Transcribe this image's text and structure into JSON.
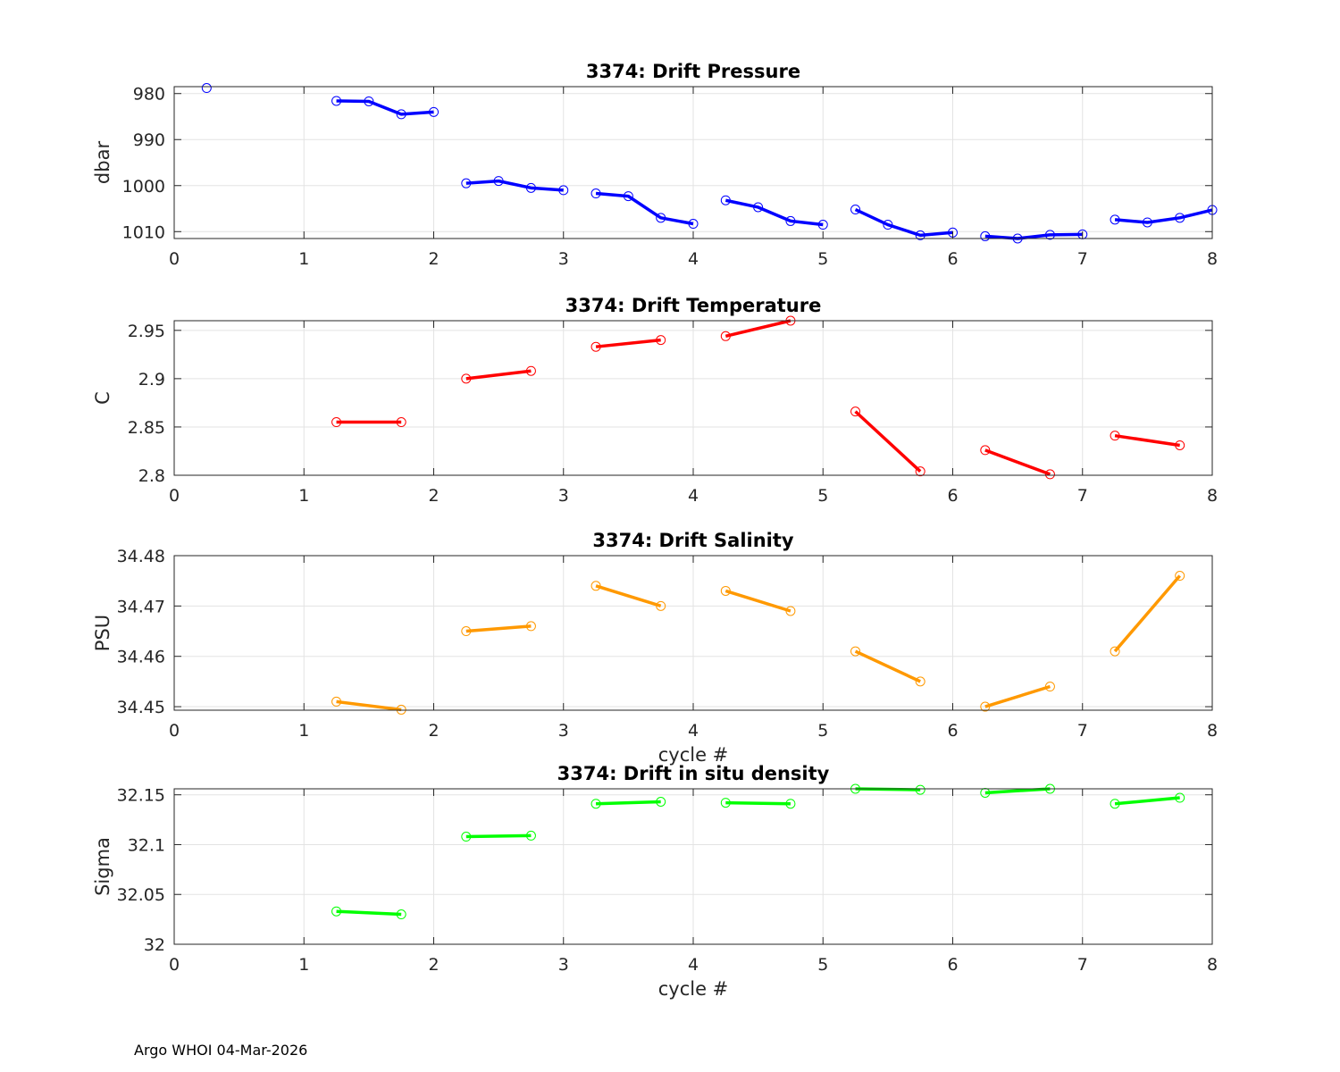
{
  "footer": "Argo WHOI 04-Mar-2026",
  "chart_data": [
    {
      "type": "line",
      "title": "3374: Drift Pressure",
      "ylabel": "dbar",
      "xlabel": "",
      "xlim": [
        0,
        8
      ],
      "ylim": [
        1011.5,
        978.5
      ],
      "y_reversed": true,
      "xticks": [
        0,
        1,
        2,
        3,
        4,
        5,
        6,
        7,
        8
      ],
      "yticks": [
        980,
        990,
        1000,
        1010
      ],
      "ytick_labels": [
        "980",
        "990",
        "1000",
        "1010"
      ],
      "color": "#0000ff",
      "grid": true,
      "segments": [
        {
          "x": [
            0.25
          ],
          "y": [
            978.8
          ]
        },
        {
          "x": [
            1.25,
            1.5,
            1.75,
            2.0
          ],
          "y": [
            981.6,
            981.7,
            984.5,
            984.0
          ]
        },
        {
          "x": [
            2.25,
            2.5,
            2.75,
            3.0
          ],
          "y": [
            999.5,
            999.0,
            1000.5,
            1001.0
          ]
        },
        {
          "x": [
            3.25,
            3.5,
            3.75,
            4.0
          ],
          "y": [
            1001.7,
            1002.3,
            1007.0,
            1008.3
          ]
        },
        {
          "x": [
            4.25,
            4.5,
            4.75,
            5.0
          ],
          "y": [
            1003.2,
            1004.7,
            1007.7,
            1008.5
          ]
        },
        {
          "x": [
            5.25,
            5.5,
            5.75,
            6.0
          ],
          "y": [
            1005.2,
            1008.5,
            1010.8,
            1010.2
          ]
        },
        {
          "x": [
            6.25,
            6.5,
            6.75,
            7.0
          ],
          "y": [
            1011.0,
            1011.5,
            1010.7,
            1010.6
          ]
        },
        {
          "x": [
            7.25,
            7.5,
            7.75,
            8.0
          ],
          "y": [
            1007.4,
            1008.0,
            1007.0,
            1005.3
          ]
        }
      ]
    },
    {
      "type": "line",
      "title": "3374: Drift Temperature",
      "ylabel": "C",
      "xlabel": "",
      "xlim": [
        0,
        8
      ],
      "ylim": [
        2.8,
        2.96
      ],
      "y_reversed": false,
      "xticks": [
        0,
        1,
        2,
        3,
        4,
        5,
        6,
        7,
        8
      ],
      "yticks": [
        2.8,
        2.85,
        2.9,
        2.95
      ],
      "ytick_labels": [
        "2.8",
        "2.85",
        "2.9",
        "2.95"
      ],
      "color": "#ff0000",
      "grid": true,
      "segments": [
        {
          "x": [
            1.25,
            1.75
          ],
          "y": [
            2.855,
            2.855
          ]
        },
        {
          "x": [
            2.25,
            2.75
          ],
          "y": [
            2.9,
            2.908
          ]
        },
        {
          "x": [
            3.25,
            3.75
          ],
          "y": [
            2.933,
            2.94
          ]
        },
        {
          "x": [
            4.25,
            4.75
          ],
          "y": [
            2.944,
            2.96
          ]
        },
        {
          "x": [
            5.25,
            5.75
          ],
          "y": [
            2.866,
            2.804
          ]
        },
        {
          "x": [
            6.25,
            6.75
          ],
          "y": [
            2.826,
            2.801
          ]
        },
        {
          "x": [
            7.25,
            7.75
          ],
          "y": [
            2.841,
            2.831
          ]
        }
      ]
    },
    {
      "type": "line",
      "title": "3374: Drift Salinity",
      "ylabel": "PSU",
      "xlabel": "cycle #",
      "xlim": [
        0,
        8
      ],
      "ylim": [
        34.4493,
        34.48
      ],
      "y_reversed": false,
      "xticks": [
        0,
        1,
        2,
        3,
        4,
        5,
        6,
        7,
        8
      ],
      "yticks": [
        34.45,
        34.46,
        34.47,
        34.48
      ],
      "ytick_labels": [
        "34.45",
        "34.46",
        "34.47",
        "34.48"
      ],
      "color": "#ff9900",
      "grid": true,
      "segments": [
        {
          "x": [
            1.25,
            1.75
          ],
          "y": [
            34.451,
            34.4494
          ]
        },
        {
          "x": [
            2.25,
            2.75
          ],
          "y": [
            34.465,
            34.466
          ]
        },
        {
          "x": [
            3.25,
            3.75
          ],
          "y": [
            34.474,
            34.47
          ]
        },
        {
          "x": [
            4.25,
            4.75
          ],
          "y": [
            34.473,
            34.469
          ]
        },
        {
          "x": [
            5.25,
            5.75
          ],
          "y": [
            34.461,
            34.455
          ]
        },
        {
          "x": [
            6.25,
            6.75
          ],
          "y": [
            34.45,
            34.454
          ]
        },
        {
          "x": [
            7.25,
            7.75
          ],
          "y": [
            34.461,
            34.476
          ]
        }
      ]
    },
    {
      "type": "line",
      "title": "3374: Drift in situ density",
      "ylabel": "Sigma",
      "xlabel": "cycle #",
      "xlim": [
        0,
        8
      ],
      "ylim": [
        32,
        32.156
      ],
      "y_reversed": false,
      "xticks": [
        0,
        1,
        2,
        3,
        4,
        5,
        6,
        7,
        8
      ],
      "yticks": [
        32,
        32.05,
        32.1,
        32.15
      ],
      "ytick_labels": [
        "32",
        "32.05",
        "32.1",
        "32.15"
      ],
      "color": "#00ff00",
      "grid": true,
      "segments": [
        {
          "x": [
            1.25,
            1.75
          ],
          "y": [
            32.033,
            32.03
          ]
        },
        {
          "x": [
            2.25,
            2.75
          ],
          "y": [
            32.108,
            32.109
          ]
        },
        {
          "x": [
            3.25,
            3.75
          ],
          "y": [
            32.141,
            32.143
          ]
        },
        {
          "x": [
            4.25,
            4.75
          ],
          "y": [
            32.142,
            32.141
          ]
        },
        {
          "x": [
            5.25,
            5.75
          ],
          "y": [
            32.156,
            32.155
          ]
        },
        {
          "x": [
            6.25,
            6.75
          ],
          "y": [
            32.152,
            32.156
          ]
        },
        {
          "x": [
            7.25,
            7.75
          ],
          "y": [
            32.141,
            32.147
          ]
        }
      ]
    }
  ]
}
